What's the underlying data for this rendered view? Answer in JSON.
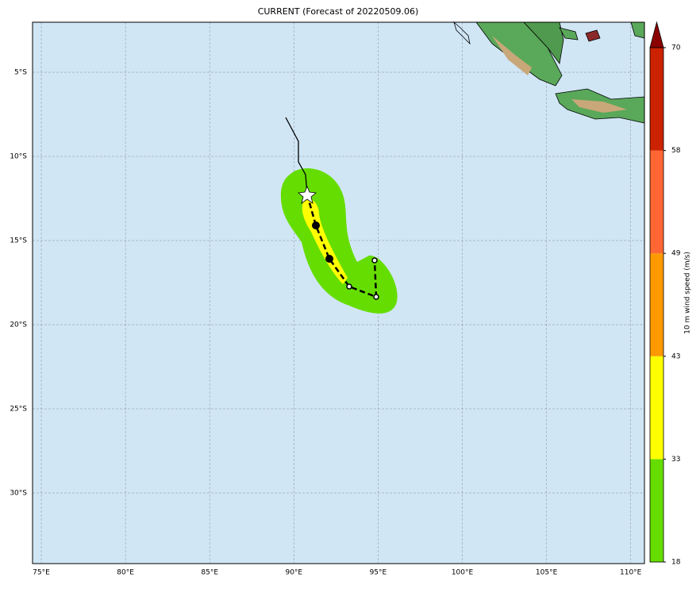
{
  "title": "CURRENT (Forecast of 20220509.06)",
  "map": {
    "lon_labels": [
      "75°E",
      "80°E",
      "85°E",
      "90°E",
      "95°E",
      "100°E",
      "105°E",
      "110°E"
    ],
    "lat_labels": [
      "5°S",
      "10°S",
      "15°S",
      "20°S",
      "25°S",
      "30°S"
    ]
  },
  "colorbar": {
    "label": "10 m wind speed (m/s)",
    "ticks": [
      18,
      33,
      43,
      49,
      58,
      70
    ],
    "colors": [
      "#66dd00",
      "#ffff00",
      "#ff9900",
      "#ff6633",
      "#cc2200"
    ],
    "extend_color": "#8b0000"
  }
}
